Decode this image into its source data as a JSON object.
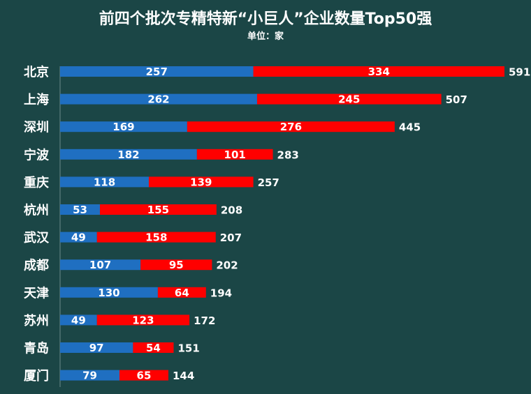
{
  "chart_data": {
    "type": "bar",
    "orientation": "horizontal",
    "stacked": true,
    "title": "前四个批次专精特新“小巨人”企业数量Top50强",
    "subtitle": "单位：家",
    "categories": [
      "北京",
      "上海",
      "深圳",
      "宁波",
      "重庆",
      "杭州",
      "武汉",
      "成都",
      "天津",
      "苏州",
      "青岛",
      "厦门"
    ],
    "series": [
      {
        "values": [
          257,
          262,
          169,
          182,
          118,
          53,
          49,
          107,
          130,
          49,
          97,
          79
        ],
        "color": "#1f6fc1"
      },
      {
        "values": [
          334,
          245,
          276,
          101,
          139,
          155,
          158,
          95,
          64,
          123,
          54,
          65
        ],
        "color": "#ff0000"
      }
    ],
    "totals": [
      591,
      507,
      445,
      283,
      257,
      208,
      207,
      202,
      194,
      172,
      151,
      144
    ],
    "xlim": [
      0,
      591
    ],
    "grid": false,
    "legend": "none"
  }
}
